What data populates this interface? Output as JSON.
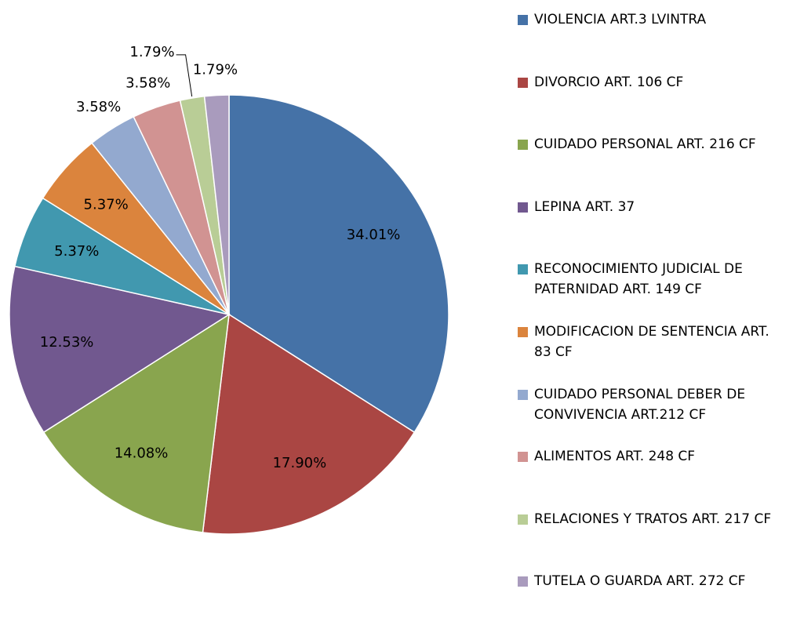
{
  "chart_data": {
    "type": "pie",
    "categories": [
      "VIOLENCIA ART.3 LVINTRA",
      "DIVORCIO ART. 106 CF",
      "CUIDADO PERSONAL ART. 216 CF",
      "LEPINA ART. 37",
      "RECONOCIMIENTO JUDICIAL DE PATERNIDAD ART. 149 CF",
      "MODIFICACION DE SENTENCIA ART. 83 CF",
      "CUIDADO PERSONAL DEBER DE CONVIVENCIA ART.212 CF",
      "ALIMENTOS ART. 248 CF",
      "RELACIONES Y TRATOS ART. 217 CF",
      "TUTELA O GUARDA ART. 272 CF"
    ],
    "values": [
      34.01,
      17.9,
      14.08,
      12.53,
      5.37,
      5.37,
      3.58,
      3.58,
      1.79,
      1.79
    ],
    "value_labels": [
      "34.01%",
      "17.90%",
      "14.08%",
      "12.53%",
      "5.37%",
      "5.37%",
      "3.58%",
      "3.58%",
      "1.79%",
      "1.79%"
    ],
    "colors": [
      "#4572a7",
      "#aa4643",
      "#89a54e",
      "#71588f",
      "#4198af",
      "#db843d",
      "#93a9cf",
      "#d19392",
      "#b9cd96",
      "#a99bbd"
    ],
    "legend": "right"
  }
}
